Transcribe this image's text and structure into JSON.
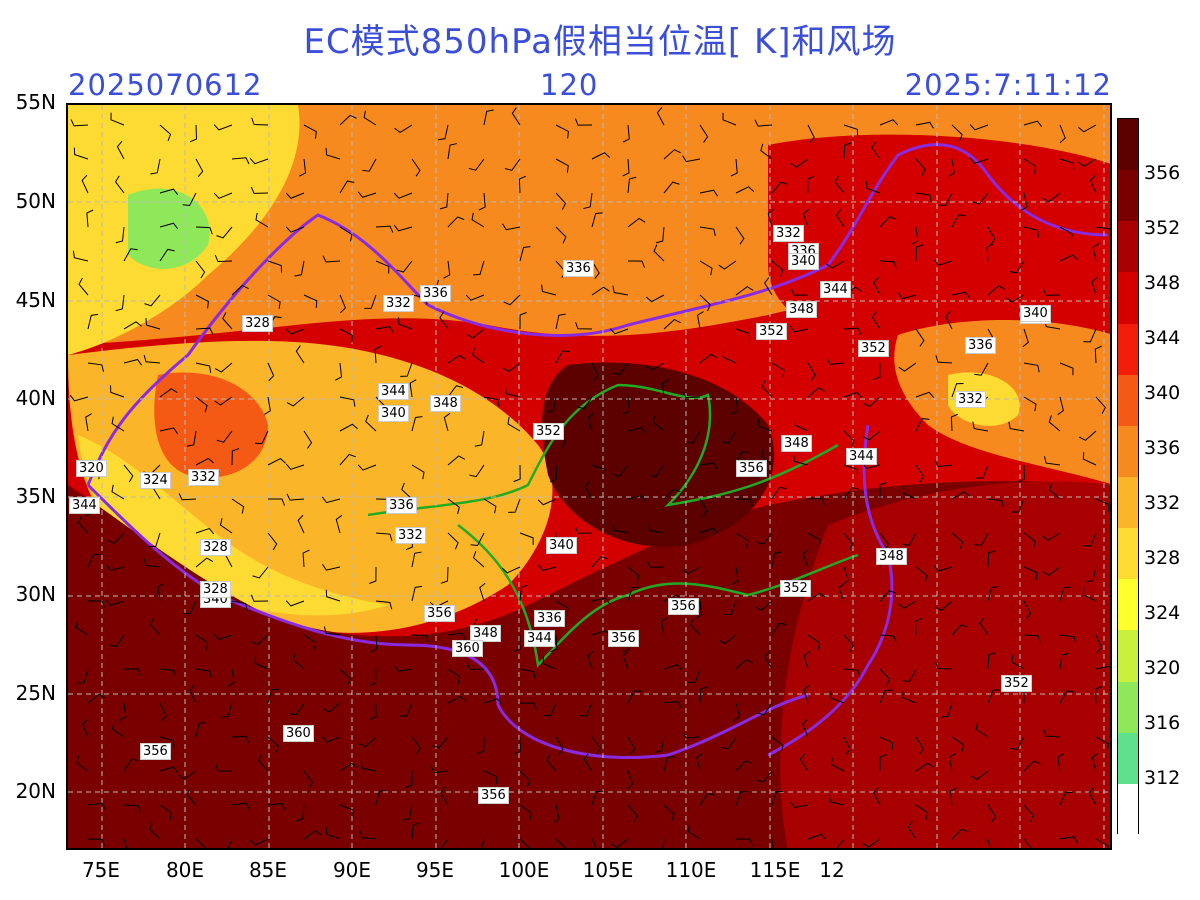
{
  "header": {
    "title": "EC模式850hPa假相当位温[ K]和风场",
    "init_time": "2025070612",
    "forecast_hour": "120",
    "valid_time": "2025:7:11:12"
  },
  "axes": {
    "lat_ticks": [
      "55N",
      "50N",
      "45N",
      "40N",
      "35N",
      "30N",
      "25N",
      "20N"
    ],
    "lon_ticks": [
      "75E",
      "80E",
      "85E",
      "90E",
      "95E",
      "100E",
      "105E",
      "110E",
      "115E",
      "12"
    ]
  },
  "colorbar": {
    "labels": [
      "356",
      "352",
      "348",
      "344",
      "340",
      "336",
      "332",
      "328",
      "324",
      "320",
      "316",
      "312"
    ],
    "colors": [
      "#5c0000",
      "#7a0000",
      "#a80000",
      "#d40000",
      "#f21c0a",
      "#f55a14",
      "#f78a1e",
      "#fbb528",
      "#fedb32",
      "#ffff2e",
      "#c8f03c",
      "#8ee85a",
      "#5ee08c",
      "#ffffff"
    ]
  },
  "contour_labels": [
    {
      "text": "336",
      "name": "contour-label-336-a"
    },
    {
      "text": "332",
      "name": "contour-label-332-a"
    },
    {
      "text": "336",
      "name": "contour-label-336-b"
    },
    {
      "text": "340",
      "name": "contour-label-340-a"
    },
    {
      "text": "332",
      "name": "contour-label-332-b"
    },
    {
      "text": "336",
      "name": "contour-label-336-c"
    },
    {
      "text": "340",
      "name": "contour-label-340-b"
    },
    {
      "text": "344",
      "name": "contour-label-344-a"
    },
    {
      "text": "348",
      "name": "contour-label-348-a"
    },
    {
      "text": "352",
      "name": "contour-label-352-a"
    },
    {
      "text": "352",
      "name": "contour-label-352-b"
    },
    {
      "text": "340",
      "name": "contour-label-340-c"
    },
    {
      "text": "336",
      "name": "contour-label-336-d"
    },
    {
      "text": "332",
      "name": "contour-label-332-c"
    },
    {
      "text": "328",
      "name": "contour-label-328-a"
    },
    {
      "text": "344",
      "name": "contour-label-344-b"
    },
    {
      "text": "340",
      "name": "contour-label-340-d"
    },
    {
      "text": "348",
      "name": "contour-label-348-b"
    },
    {
      "text": "352",
      "name": "contour-label-352-c"
    },
    {
      "text": "356",
      "name": "contour-label-356-a"
    },
    {
      "text": "348",
      "name": "contour-label-348-c"
    },
    {
      "text": "344",
      "name": "contour-label-344-c"
    },
    {
      "text": "320",
      "name": "contour-label-320"
    },
    {
      "text": "324",
      "name": "contour-label-324"
    },
    {
      "text": "332",
      "name": "contour-label-332-d"
    },
    {
      "text": "344",
      "name": "contour-label-344-d"
    },
    {
      "text": "336",
      "name": "contour-label-336-e"
    },
    {
      "text": "332",
      "name": "contour-label-332-e"
    },
    {
      "text": "340",
      "name": "contour-label-340-e"
    },
    {
      "text": "328",
      "name": "contour-label-328-b"
    },
    {
      "text": "328",
      "name": "contour-label-328-c"
    },
    {
      "text": "340",
      "name": "contour-label-340-f"
    },
    {
      "text": "356",
      "name": "contour-label-356-b"
    },
    {
      "text": "348",
      "name": "contour-label-348-d"
    },
    {
      "text": "360",
      "name": "contour-label-360-a"
    },
    {
      "text": "336",
      "name": "contour-label-336-f"
    },
    {
      "text": "344",
      "name": "contour-label-344-e"
    },
    {
      "text": "356",
      "name": "contour-label-356-c"
    },
    {
      "text": "356",
      "name": "contour-label-356-d"
    },
    {
      "text": "352",
      "name": "contour-label-352-d"
    },
    {
      "text": "348",
      "name": "contour-label-348-e"
    },
    {
      "text": "352",
      "name": "contour-label-352-e"
    },
    {
      "text": "360",
      "name": "contour-label-360-b"
    },
    {
      "text": "356",
      "name": "contour-label-356-e"
    },
    {
      "text": "356",
      "name": "contour-label-356-f"
    }
  ]
}
